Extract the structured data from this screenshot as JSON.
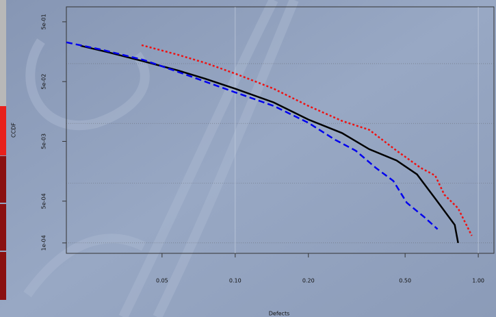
{
  "chart_data": {
    "type": "line",
    "xlabel": "Defects",
    "ylabel": "CCDF",
    "xlog": true,
    "ylog": true,
    "xlim": [
      0.0202,
      1.16
    ],
    "ylim": [
      6.7e-05,
      0.89
    ],
    "xticks": [
      0.05,
      {
        "value": 0.1,
        "label": "0.10"
      },
      {
        "value": 0.2,
        "label": "0.20"
      },
      {
        "value": 0.5,
        "label": "0.50"
      },
      {
        "value": 1,
        "label": "1.00"
      }
    ],
    "yticks": [
      {
        "value": 0.5,
        "label": "5e-01"
      },
      {
        "value": 0.05,
        "label": "5e-02"
      },
      {
        "value": 0.005,
        "label": "5e-03"
      },
      {
        "value": 0.0005,
        "label": "5e-04"
      },
      {
        "value": 0.0001,
        "label": "1e-04"
      }
    ],
    "xgrid": [
      0.1,
      1
    ],
    "ygrid": [
      0.1,
      0.01,
      0.001,
      0.0001
    ],
    "series": [
      {
        "color": "#000000",
        "dash": "solid",
        "x": [
          0.0231,
          0.0304,
          0.042,
          0.058,
          0.0752,
          0.1,
          0.144,
          0.2,
          0.275,
          0.356,
          0.461,
          0.56,
          0.68,
          0.8,
          0.826
        ],
        "values": [
          0.199,
          0.153,
          0.109,
          0.077,
          0.056,
          0.038,
          0.0224,
          0.0116,
          0.0069,
          0.0037,
          0.0024,
          0.0014,
          0.00049,
          0.0002,
          0.0001
        ]
      },
      {
        "color": "#0000ee",
        "dash": "dashed",
        "x": [
          0.0202,
          0.0284,
          0.042,
          0.058,
          0.1,
          0.144,
          0.2,
          0.258,
          0.313,
          0.379,
          0.447,
          0.508,
          0.6,
          0.68
        ],
        "values": [
          0.227,
          0.17,
          0.115,
          0.073,
          0.033,
          0.0196,
          0.0102,
          0.0053,
          0.0035,
          0.0018,
          0.00109,
          0.00047,
          0.00027,
          0.00017
        ]
      },
      {
        "color": "#ee1111",
        "dash": "dotted",
        "x": [
          0.0412,
          0.058,
          0.0752,
          0.1,
          0.144,
          0.2,
          0.275,
          0.356,
          0.461,
          0.58,
          0.665,
          0.725,
          0.826,
          0.94
        ],
        "values": [
          0.204,
          0.141,
          0.103,
          0.068,
          0.038,
          0.0196,
          0.011,
          0.0078,
          0.0035,
          0.0018,
          0.00134,
          0.00064,
          0.00038,
          0.000132
        ]
      }
    ]
  }
}
